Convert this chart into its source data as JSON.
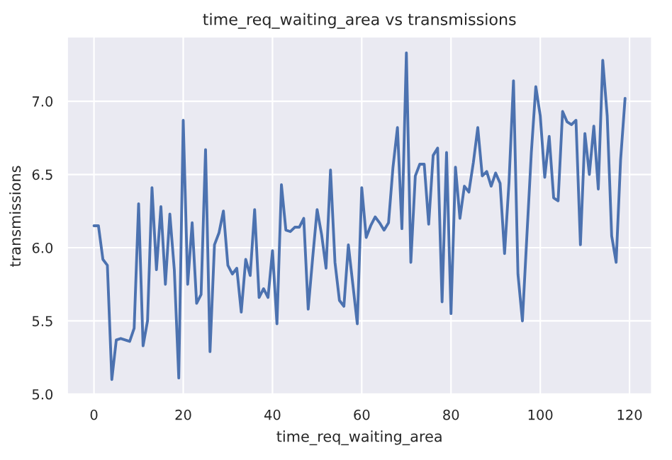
{
  "chart_data": {
    "type": "line",
    "title": "time_req_waiting_area vs transmissions",
    "xlabel": "time_req_waiting_area",
    "ylabel": "transmissions",
    "x": [
      0,
      1,
      2,
      3,
      4,
      5,
      6,
      7,
      8,
      9,
      10,
      11,
      12,
      13,
      14,
      15,
      16,
      17,
      18,
      19,
      20,
      21,
      22,
      23,
      24,
      25,
      26,
      27,
      28,
      29,
      30,
      31,
      32,
      33,
      34,
      35,
      36,
      37,
      38,
      39,
      40,
      41,
      42,
      43,
      44,
      45,
      46,
      47,
      48,
      49,
      50,
      51,
      52,
      53,
      54,
      55,
      56,
      57,
      58,
      59,
      60,
      61,
      62,
      63,
      64,
      65,
      66,
      67,
      68,
      69,
      70,
      71,
      72,
      73,
      74,
      75,
      76,
      77,
      78,
      79,
      80,
      81,
      82,
      83,
      84,
      85,
      86,
      87,
      88,
      89,
      90,
      91,
      92,
      93,
      94,
      95,
      96,
      97,
      98,
      99,
      100,
      101,
      102,
      103,
      104,
      105,
      106,
      107,
      108,
      109,
      110,
      111,
      112,
      113,
      114,
      115,
      116,
      117,
      118,
      119
    ],
    "series": [
      {
        "color": "#4c72b0",
        "values": [
          6.15,
          6.15,
          5.92,
          5.88,
          5.1,
          5.37,
          5.38,
          5.37,
          5.36,
          5.45,
          6.3,
          5.33,
          5.5,
          6.41,
          5.85,
          6.28,
          5.75,
          6.23,
          5.85,
          5.11,
          6.87,
          5.75,
          6.17,
          5.62,
          5.68,
          6.67,
          5.29,
          6.02,
          6.1,
          6.25,
          5.88,
          5.82,
          5.86,
          5.56,
          5.92,
          5.81,
          6.26,
          5.66,
          5.72,
          5.66,
          5.98,
          5.48,
          6.43,
          6.12,
          6.11,
          6.14,
          6.14,
          6.2,
          5.58,
          5.93,
          6.26,
          6.09,
          5.86,
          6.53,
          5.9,
          5.64,
          5.6,
          6.02,
          5.75,
          5.48,
          6.41,
          6.07,
          6.15,
          6.21,
          6.17,
          6.12,
          6.17,
          6.55,
          6.82,
          6.13,
          7.33,
          5.9,
          6.49,
          6.57,
          6.57,
          6.16,
          6.63,
          6.68,
          5.63,
          6.65,
          5.55,
          6.55,
          6.2,
          6.42,
          6.38,
          6.58,
          6.82,
          6.49,
          6.52,
          6.42,
          6.51,
          6.44,
          5.96,
          6.45,
          7.14,
          5.82,
          5.5,
          6.08,
          6.65,
          7.1,
          6.9,
          6.48,
          6.76,
          6.34,
          6.32,
          6.93,
          6.86,
          6.84,
          6.87,
          6.02,
          6.78,
          6.5,
          6.83,
          6.4,
          7.28,
          6.9,
          6.08,
          5.9,
          6.6,
          7.02
        ]
      }
    ],
    "xlim": [
      -6,
      125
    ],
    "ylim": [
      4.99,
      7.44
    ],
    "xticks": [
      0,
      20,
      40,
      60,
      80,
      100,
      120
    ],
    "yticks": [
      {
        "value": 5,
        "label": "5.0"
      },
      5.5,
      {
        "value": 6,
        "label": "6.0"
      },
      6.5,
      {
        "value": 7,
        "label": "7.0"
      }
    ],
    "grid": true,
    "legend": false,
    "marker": "none",
    "line_style": "solid"
  }
}
